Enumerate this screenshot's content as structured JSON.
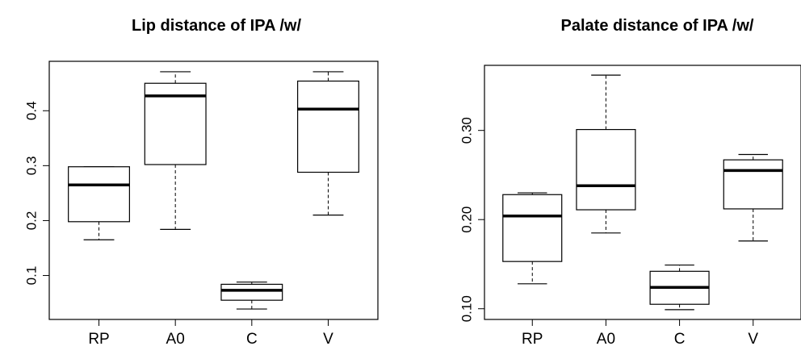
{
  "chart_data": [
    {
      "type": "boxplot",
      "title": "Lip distance of IPA /w/",
      "categories": [
        "RP",
        "A0",
        "C",
        "V"
      ],
      "boxes": [
        {
          "category": "RP",
          "whisker_low": 0.165,
          "q1": 0.198,
          "median": 0.265,
          "q3": 0.298,
          "whisker_high": 0.298
        },
        {
          "category": "A0",
          "whisker_low": 0.184,
          "q1": 0.302,
          "median": 0.427,
          "q3": 0.45,
          "whisker_high": 0.471
        },
        {
          "category": "C",
          "whisker_low": 0.039,
          "q1": 0.055,
          "median": 0.073,
          "q3": 0.084,
          "whisker_high": 0.088
        },
        {
          "category": "V",
          "whisker_low": 0.21,
          "q1": 0.288,
          "median": 0.403,
          "q3": 0.454,
          "whisker_high": 0.471
        }
      ],
      "yticks": [
        0.1,
        0.2,
        0.3,
        0.4
      ],
      "ytick_labels": [
        "0.1",
        "0.2",
        "0.3",
        "0.4"
      ],
      "ylim": [
        0.02,
        0.49
      ],
      "xlabel": "",
      "ylabel": "",
      "grid": false
    },
    {
      "type": "boxplot",
      "title": "Palate distance of IPA /w/",
      "categories": [
        "RP",
        "A0",
        "C",
        "V"
      ],
      "boxes": [
        {
          "category": "RP",
          "whisker_low": 0.128,
          "q1": 0.153,
          "median": 0.204,
          "q3": 0.228,
          "whisker_high": 0.23
        },
        {
          "category": "A0",
          "whisker_low": 0.185,
          "q1": 0.211,
          "median": 0.238,
          "q3": 0.301,
          "whisker_high": 0.362
        },
        {
          "category": "C",
          "whisker_low": 0.099,
          "q1": 0.105,
          "median": 0.124,
          "q3": 0.142,
          "whisker_high": 0.149
        },
        {
          "category": "V",
          "whisker_low": 0.176,
          "q1": 0.212,
          "median": 0.255,
          "q3": 0.267,
          "whisker_high": 0.273
        }
      ],
      "yticks": [
        0.1,
        0.2,
        0.3
      ],
      "ytick_labels": [
        "0.10",
        "0.20",
        "0.30"
      ],
      "ylim": [
        0.088,
        0.373
      ],
      "xlabel": "",
      "ylabel": "",
      "grid": false
    }
  ]
}
